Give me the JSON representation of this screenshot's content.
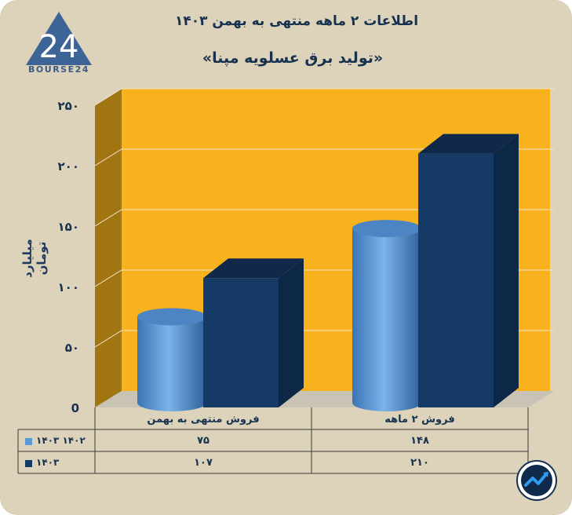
{
  "brand": {
    "logo_text": "BOURSE24",
    "logo_number": "24"
  },
  "header": {
    "title": "اطلاعات ۲ ماهه منتهی به بهمن ۱۴۰۳",
    "subtitle": "«تولید برق عسلویه مپنا»"
  },
  "chart_data": {
    "type": "bar",
    "title": "اطلاعات ۲ ماهه منتهی به بهمن ۱۴۰۳",
    "subtitle": "«تولید برق عسلویه مپنا»",
    "ylabel": "میلیارد تومان",
    "ylim": [
      0,
      250
    ],
    "yticks": [
      0,
      50,
      100,
      150,
      200,
      250
    ],
    "ytick_labels": [
      "0",
      "۵۰",
      "۱۰۰",
      "۱۵۰",
      "۲۰۰",
      "۲۵۰"
    ],
    "categories": [
      "فروش منتهی به  بهمن",
      "فروش ۲ ماهه"
    ],
    "series": [
      {
        "name": "۱۴۰۲ ۱۴۰۳",
        "values": [
          75,
          148
        ],
        "value_labels": [
          "۷۵",
          "۱۴۸"
        ],
        "color": "#5b9bd5",
        "shape": "cylinder"
      },
      {
        "name": "۱۴۰۳",
        "values": [
          107,
          210
        ],
        "value_labels": [
          "۱۰۷",
          "۲۱۰"
        ],
        "color": "#163a66",
        "shape": "box"
      }
    ],
    "grid": true,
    "background": "#f7b21e",
    "legend": "table-left"
  }
}
